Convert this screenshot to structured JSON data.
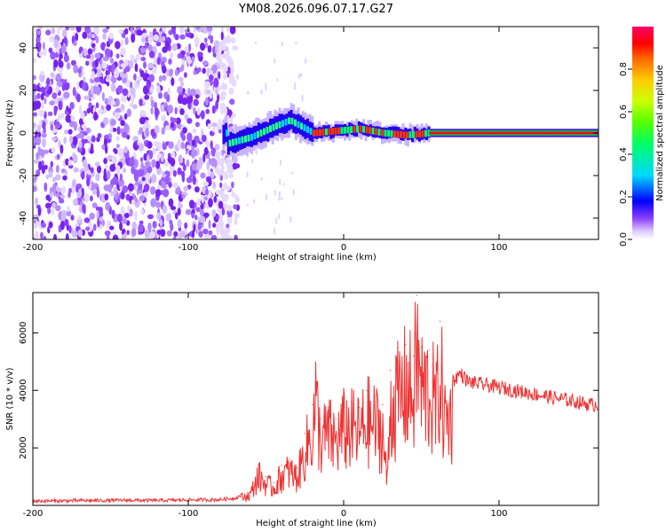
{
  "title": "YM08.2026.096.07.17.G27",
  "chart_data": [
    {
      "type": "heatmap",
      "xlabel": "Height of straight line (km)",
      "ylabel": "Frequency (Hz)",
      "xlim": [
        -200,
        164
      ],
      "ylim": [
        -50,
        50
      ],
      "x_ticks": [
        -200,
        -100,
        0,
        100
      ],
      "y_ticks": [
        -40,
        -20,
        0,
        20,
        40
      ],
      "colorbar": {
        "label": "Normalized spectral amplitude",
        "range": [
          0,
          1
        ],
        "ticks": [
          "0.0",
          "0.2",
          "0.4",
          "0.6",
          "0.8"
        ]
      },
      "noise_region_x": [
        -200,
        -68
      ],
      "signal_track": [
        {
          "x": -75,
          "f": -5
        },
        {
          "x": -60,
          "f": -2
        },
        {
          "x": -45,
          "f": 3
        },
        {
          "x": -35,
          "f": 6
        },
        {
          "x": -20,
          "f": 0
        },
        {
          "x": -5,
          "f": 1
        },
        {
          "x": 10,
          "f": 2
        },
        {
          "x": 25,
          "f": 0
        },
        {
          "x": 40,
          "f": -1
        },
        {
          "x": 55,
          "f": 0
        },
        {
          "x": 100,
          "f": 0
        },
        {
          "x": 164,
          "f": 0
        }
      ]
    },
    {
      "type": "line",
      "xlabel": "Height of straight line (km)",
      "ylabel": "SNR (10 * v/v)",
      "xlim": [
        -200,
        164
      ],
      "ylim": [
        0,
        7400
      ],
      "x_ticks": [
        -200,
        -100,
        0,
        100
      ],
      "y_ticks": [
        2000,
        4000,
        6000
      ],
      "color": "#ee3333",
      "series": [
        {
          "name": "SNR",
          "x": [
            -200,
            -180,
            -160,
            -140,
            -120,
            -100,
            -80,
            -70,
            -60,
            -55,
            -50,
            -45,
            -40,
            -35,
            -30,
            -25,
            -20,
            -18,
            -15,
            -10,
            -5,
            0,
            5,
            10,
            15,
            20,
            25,
            28,
            30,
            35,
            40,
            45,
            47,
            50,
            55,
            60,
            62,
            65,
            70,
            75,
            80,
            90,
            100,
            110,
            120,
            130,
            140,
            150,
            160,
            164
          ],
          "y": [
            150,
            160,
            170,
            180,
            170,
            190,
            200,
            250,
            500,
            1400,
            1000,
            800,
            1400,
            1600,
            1300,
            2500,
            3500,
            4900,
            3000,
            3400,
            3000,
            3600,
            3600,
            3400,
            4000,
            3800,
            3500,
            1100,
            4700,
            5000,
            5600,
            5200,
            7300,
            5500,
            5400,
            4600,
            6400,
            4000,
            4300,
            4600,
            4300,
            4200,
            4100,
            4000,
            3900,
            3800,
            3700,
            3600,
            3500,
            3500
          ]
        }
      ]
    }
  ]
}
